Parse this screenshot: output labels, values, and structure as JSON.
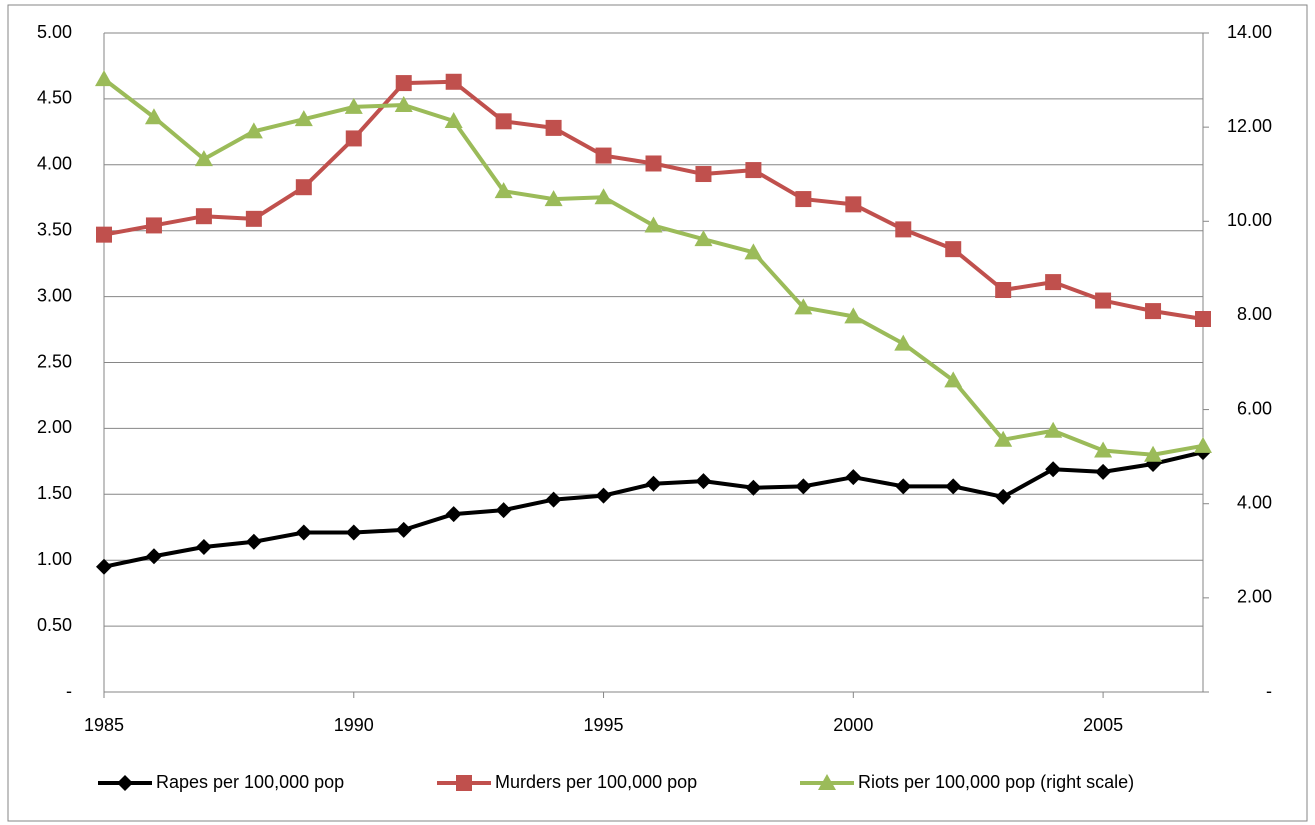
{
  "chart_data": {
    "type": "line",
    "x": [
      1985,
      1986,
      1987,
      1988,
      1989,
      1990,
      1991,
      1992,
      1993,
      1994,
      1995,
      1996,
      1997,
      1998,
      1999,
      2000,
      2001,
      2002,
      2003,
      2004,
      2005,
      2006,
      2007
    ],
    "xlim": [
      1985,
      2007
    ],
    "xticks": [
      1985,
      1990,
      1995,
      2000,
      2005
    ],
    "ylim": [
      0,
      5
    ],
    "yticks": [
      {
        "value": 0,
        "label": "-"
      },
      {
        "value": 0.5,
        "label": "0.50"
      },
      {
        "value": 1,
        "label": "1.00"
      },
      {
        "value": 1.5,
        "label": "1.50"
      },
      {
        "value": 2,
        "label": "2.00"
      },
      {
        "value": 2.5,
        "label": "2.50"
      },
      {
        "value": 3,
        "label": "3.00"
      },
      {
        "value": 3.5,
        "label": "3.50"
      },
      {
        "value": 4,
        "label": "4.00"
      },
      {
        "value": 4.5,
        "label": "4.50"
      },
      {
        "value": 5,
        "label": "5.00"
      }
    ],
    "y2lim": [
      0,
      14
    ],
    "y2ticks": [
      {
        "value": 0,
        "label": "-"
      },
      {
        "value": 2,
        "label": "2.00"
      },
      {
        "value": 4,
        "label": "4.00"
      },
      {
        "value": 6,
        "label": "6.00"
      },
      {
        "value": 8,
        "label": "8.00"
      },
      {
        "value": 10,
        "label": "10.00"
      },
      {
        "value": 12,
        "label": "12.00"
      },
      {
        "value": 14,
        "label": "14.00"
      }
    ],
    "grid": true,
    "legend": "bottom",
    "series": [
      {
        "name": "Rapes per 100,000 pop",
        "color": "#000000",
        "marker": "diamond",
        "values": [
          0.95,
          1.03,
          1.1,
          1.14,
          1.21,
          1.21,
          1.23,
          1.35,
          1.38,
          1.46,
          1.49,
          1.58,
          1.6,
          1.55,
          1.56,
          1.63,
          1.56,
          1.56,
          1.48,
          1.69,
          1.67,
          1.73,
          1.82
        ]
      },
      {
        "name": "Murders per 100,000 pop",
        "color": "#c0504d",
        "marker": "square",
        "values": [
          3.47,
          3.54,
          3.61,
          3.59,
          3.83,
          4.2,
          4.62,
          4.63,
          4.33,
          4.28,
          4.07,
          4.01,
          3.93,
          3.96,
          3.74,
          3.7,
          3.51,
          3.36,
          3.05,
          3.11,
          2.97,
          2.89,
          2.83
        ]
      },
      {
        "name": "Riots per 100,000 pop (right scale)",
        "color": "#9bbb59",
        "marker": "triangle",
        "axis": "y2",
        "values": [
          13.02,
          12.21,
          11.32,
          11.91,
          12.17,
          12.43,
          12.47,
          12.13,
          10.64,
          10.47,
          10.51,
          9.91,
          9.62,
          9.34,
          8.17,
          7.98,
          7.4,
          6.62,
          5.36,
          5.55,
          5.13,
          5.04,
          5.23
        ]
      }
    ]
  }
}
